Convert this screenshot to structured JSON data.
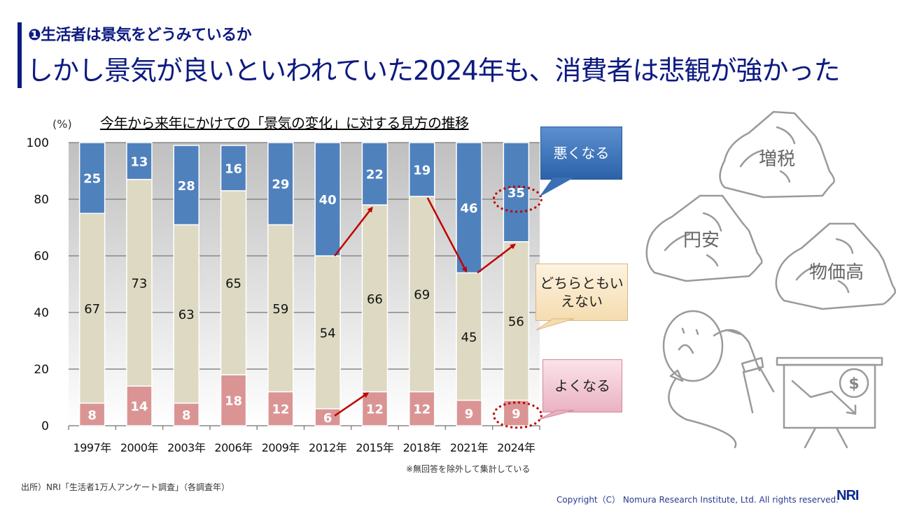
{
  "header": {
    "subtitle": "❶生活者は景気をどうみているか",
    "title": "しかし景気が良いといわれていた2024年も、消費者は悲観が強かった"
  },
  "chart_data": {
    "type": "bar",
    "stacked": true,
    "title": "今年から来年にかけての「景気の変化」に対する見方の推移",
    "ylabel": "(%)",
    "xlabel": "",
    "ylim": [
      0,
      100
    ],
    "yticks": [
      "0",
      "20",
      "40",
      "60",
      "80",
      "100"
    ],
    "grid": true,
    "categories": [
      "1997年",
      "2000年",
      "2003年",
      "2006年",
      "2009年",
      "2012年",
      "2015年",
      "2018年",
      "2021年",
      "2024年"
    ],
    "series": [
      {
        "name": "よくなる",
        "color": "#da9494",
        "label_color": "#ffffff",
        "values": [
          8,
          14,
          8,
          18,
          12,
          6,
          12,
          12,
          9,
          9
        ]
      },
      {
        "name": "どちらともいえない",
        "color": "#ddd9c3",
        "label_color": "#111111",
        "values": [
          67,
          73,
          63,
          65,
          59,
          54,
          66,
          69,
          45,
          56
        ]
      },
      {
        "name": "悪くなる",
        "color": "#4f81bd",
        "label_color": "#ffffff",
        "values": [
          25,
          13,
          28,
          16,
          29,
          40,
          22,
          19,
          46,
          35
        ]
      }
    ],
    "annotations": {
      "arrows": [
        {
          "from": "2012年 悪くなる下端",
          "to": "2015年 悪くなる下端",
          "color": "#c00000"
        },
        {
          "from": "2012年 よくなる上端",
          "to": "2015年 よくなる上端",
          "color": "#c00000"
        },
        {
          "from": "2018年 悪くなる下端",
          "to": "2021年 悪くなる下端",
          "color": "#c00000"
        },
        {
          "from": "2021年 悪くなる下端",
          "to": "2024年 悪くなる下端",
          "color": "#c00000"
        }
      ],
      "highlight_circles": [
        "2024年 悪くなる 35",
        "2024年 よくなる 9"
      ]
    },
    "note": "※無回答を除外して集計している"
  },
  "callouts": {
    "worse": "悪くなる",
    "neutral_line1": "どちらともい",
    "neutral_line2": "えない",
    "better": "よくなる"
  },
  "illustration": {
    "rock1": "増税",
    "rock2": "円安",
    "rock3": "物価高",
    "icon": "worried-person-with-falling-chart",
    "currency_symbol": "$"
  },
  "footer": {
    "source": "出所）NRI「生活者1万人アンケート調査」（各調査年）",
    "copyright": "Copyright（C） Nomura Research Institute, Ltd. All rights reserved.",
    "logo": "NRI"
  },
  "colors": {
    "title": "#0d1a80",
    "accent_red": "#c00000"
  }
}
